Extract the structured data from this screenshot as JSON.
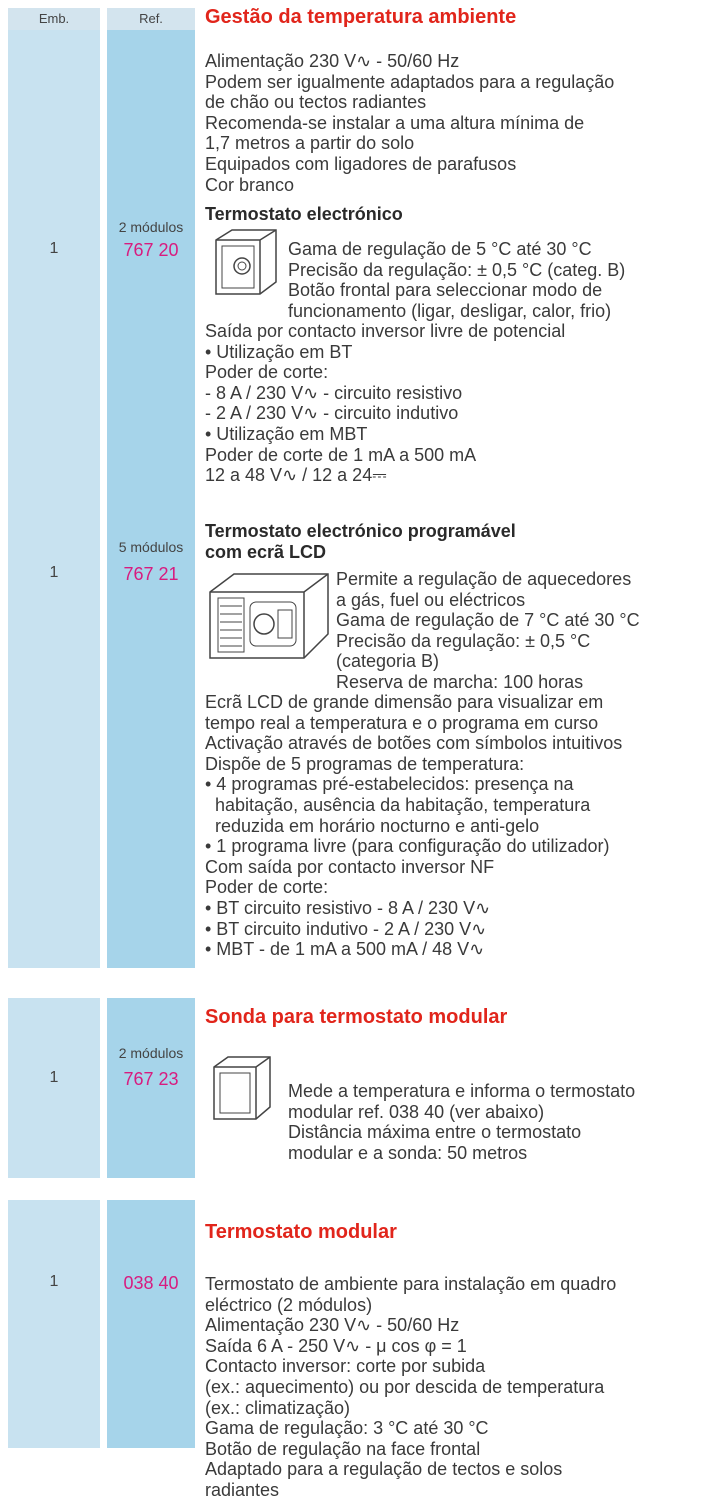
{
  "header": {
    "emb": "Emb.",
    "ref": "Ref.",
    "title": "Gestão da temperatura ambiente"
  },
  "intro": [
    "Alimentação 230 V∿ - 50/60 Hz",
    "Podem ser igualmente adaptados para a regulação",
    "de chão ou tectos radiantes",
    "Recomenda-se instalar a uma altura mínima de",
    "1,7 metros a partir do solo",
    "Equipados com ligadores de parafusos",
    "Cor branco"
  ],
  "products": [
    {
      "emb": "1",
      "modules": "2 módulos",
      "ref": "767 20",
      "title": [
        "Termostato electrónico"
      ],
      "side": [
        "Gama de regulação de 5 °C até 30 °C",
        "Precisão da regulação: ± 0,5 °C (categ. B)",
        "Botão frontal para seleccionar modo de",
        "funcionamento (ligar, desligar, calor, frio)"
      ],
      "lines": [
        "Saída por contacto inversor livre de potencial",
        "• Utilização em BT",
        "Poder de corte:",
        "- 8 A / 230 V∿ - circuito resistivo",
        "- 2 A / 230 V∿ - circuito indutivo",
        "• Utilização em MBT",
        "Poder de corte de 1 mA a 500 mA",
        "12 a 48 V∿ / 12 a 24⎓"
      ]
    },
    {
      "emb": "1",
      "modules": "5 módulos",
      "ref": "767 21",
      "title": [
        "Termostato electrónico programável",
        "com ecrã LCD"
      ],
      "side": [
        "Permite a regulação de aquecedores",
        "a gás, fuel ou eléctricos",
        "Gama de regulação de 7 °C até 30 °C",
        "Precisão da regulação: ± 0,5 °C",
        "(categoria B)",
        "Reserva de marcha: 100 horas"
      ],
      "lines": [
        "Ecrã LCD de grande dimensão para visualizar em",
        "tempo real a temperatura e o programa em curso",
        "Activação através de botões com símbolos intuitivos",
        "Dispõe de 5 programas de temperatura:",
        "• 4 programas pré-estabelecidos: presença na",
        "habitação, ausência da habitação, temperatura",
        "reduzida em horário nocturno e anti-gelo",
        "• 1 programa livre (para configuração do utilizador)",
        "Com saída por contacto inversor NF",
        "Poder de corte:",
        "• BT circuito resistivo - 8 A / 230 V∿",
        "• BT circuito indutivo - 2 A / 230 V∿",
        "• MBT - de 1 mA a 500 mA / 48 V∿"
      ]
    }
  ],
  "sections": [
    {
      "title": "Sonda para termostato modular",
      "emb": "1",
      "modules": "2 módulos",
      "ref": "767 23",
      "side": [
        "Mede a temperatura e informa o termostato",
        "modular ref. 038 40 (ver abaixo)",
        "Distância máxima entre o termostato",
        "modular e a sonda: 50 metros"
      ]
    },
    {
      "title": "Termostato modular",
      "emb": "1",
      "ref": "038 40",
      "lines": [
        "Termostato de ambiente para instalação em quadro",
        "eléctrico (2 módulos)",
        "Alimentação 230 V∿ - 50/60 Hz",
        "Saída 6 A - 250 V∿ - μ cos φ = 1",
        "Contacto inversor: corte por subida",
        "(ex.: aquecimento) ou por descida de temperatura",
        "(ex.: climatização)",
        "Gama de regulação: 3 °C até 30 °C",
        "Botão de regulação na face frontal",
        "Adaptado para a regulação de tectos e solos",
        "radiantes"
      ]
    }
  ]
}
